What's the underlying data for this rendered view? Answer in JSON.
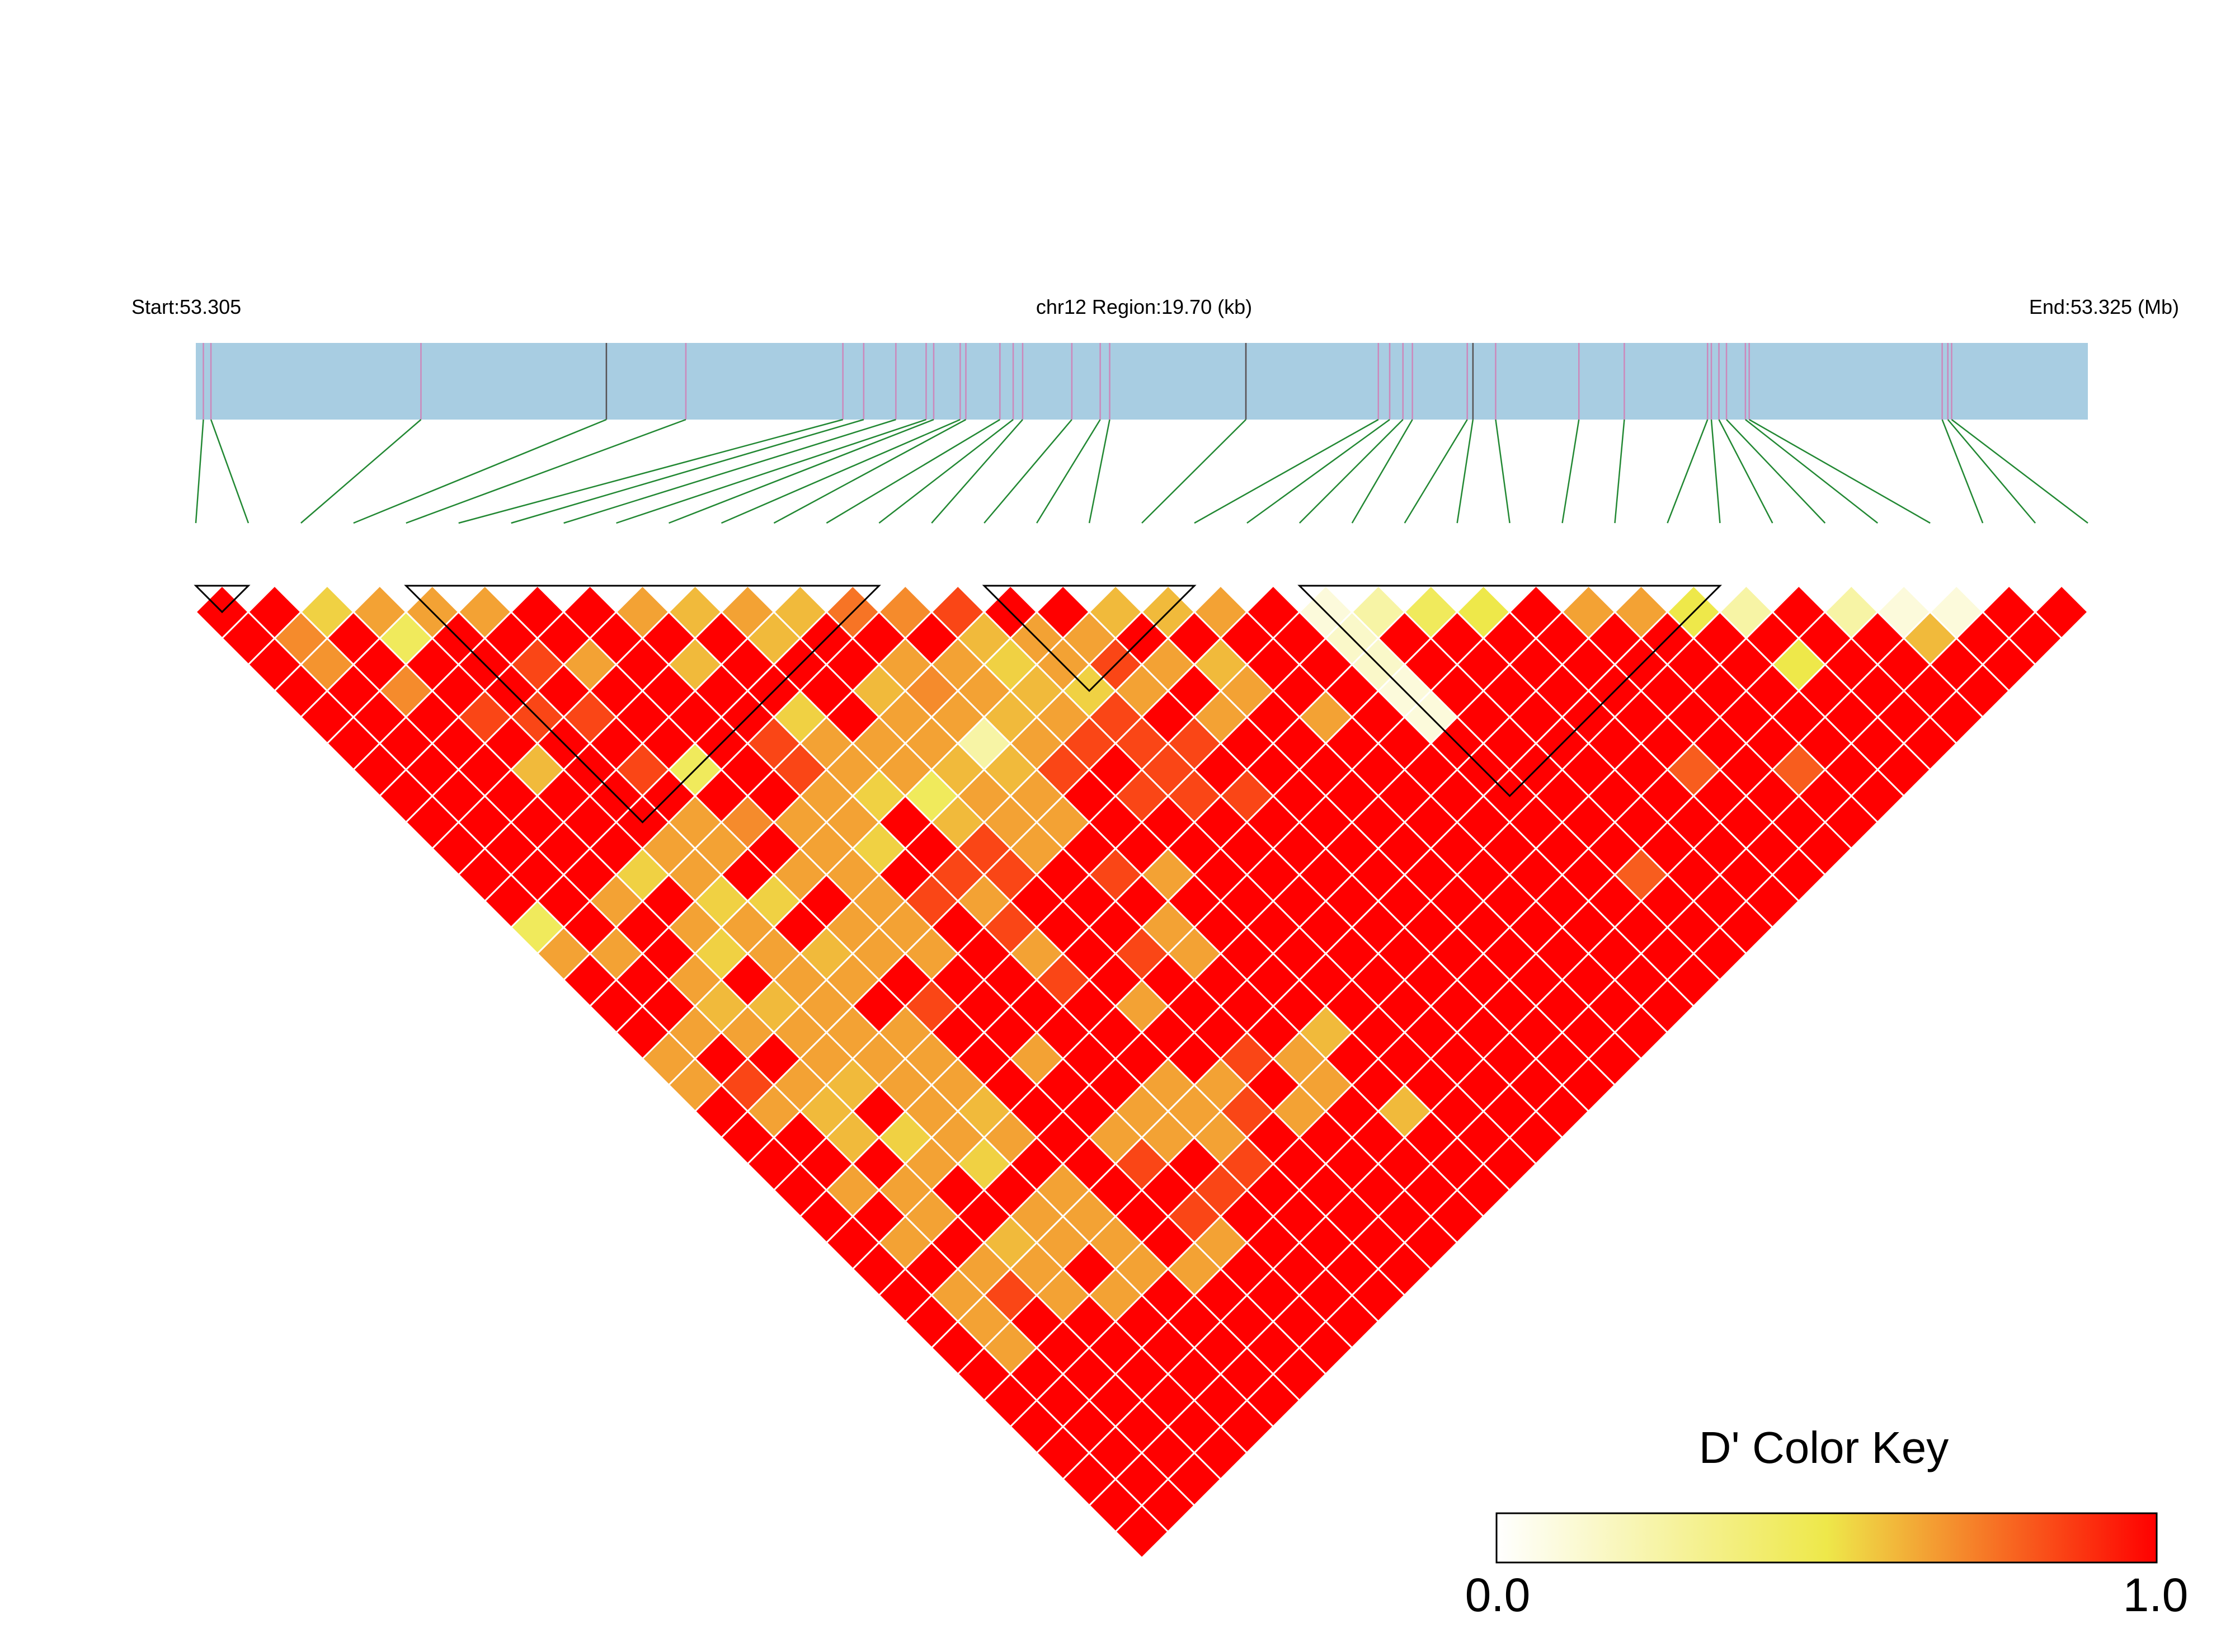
{
  "chart_data": {
    "type": "heatmap",
    "subtype": "ld-triangle",
    "region": {
      "start_label": "Start:53.305",
      "center_label": "chr12 Region:19.70 (kb)",
      "end_label": "End:53.325 (Mb)",
      "start_mb": 53.305,
      "end_mb": 53.325,
      "length_kb": 19.7
    },
    "snp_positions_fraction": [
      0.004,
      0.008,
      0.119,
      0.217,
      0.259,
      0.342,
      0.353,
      0.37,
      0.386,
      0.39,
      0.404,
      0.407,
      0.425,
      0.432,
      0.437,
      0.463,
      0.478,
      0.483,
      0.555,
      0.625,
      0.631,
      0.638,
      0.643,
      0.672,
      0.675,
      0.687,
      0.731,
      0.755,
      0.799,
      0.801,
      0.805,
      0.809,
      0.819,
      0.821,
      0.923,
      0.926,
      0.928
    ],
    "marker_line_colors": {
      "snp": "#cc88bb",
      "gene": "#555555",
      "connector": "#228833",
      "track": "#a8cde2"
    },
    "ld_matrix_dprime_rows": [
      [],
      [
        1
      ],
      [
        1,
        1
      ],
      [
        1,
        0.7,
        0.55
      ],
      [
        1,
        0.68,
        1,
        0.65
      ],
      [
        1,
        1,
        1,
        0.45,
        0.65
      ],
      [
        1,
        1,
        0.7,
        1,
        1,
        0.65
      ],
      [
        1,
        1,
        1,
        1,
        1,
        1,
        1
      ],
      [
        1,
        1,
        1,
        0.85,
        1,
        0.85,
        1,
        1
      ],
      [
        1,
        1,
        1,
        1,
        0.85,
        1,
        0.65,
        1,
        0.65
      ],
      [
        1,
        1,
        1,
        0.6,
        1,
        0.85,
        1,
        1,
        1,
        0.6
      ],
      [
        1,
        1,
        1,
        1,
        1,
        1,
        1,
        1,
        0.6,
        1,
        0.65
      ],
      [
        1,
        1,
        1,
        1,
        1,
        0.85,
        1,
        1,
        1,
        1,
        0.6,
        0.6
      ],
      [
        0.45,
        1,
        1,
        1,
        1,
        1,
        0.45,
        1,
        1,
        1,
        1,
        1,
        0.75
      ],
      [
        0.65,
        1,
        0.65,
        0.55,
        0.65,
        0.65,
        1,
        1,
        0.85,
        0.55,
        1,
        1,
        1,
        0.7
      ],
      [
        1,
        0.65,
        1,
        1,
        0.65,
        0.65,
        0.7,
        1,
        0.85,
        0.65,
        1,
        0.6,
        0.65,
        1,
        0.85
      ],
      [
        1,
        1,
        1,
        0.65,
        0.55,
        1,
        1,
        0.65,
        0.65,
        0.65,
        0.65,
        0.65,
        0.7,
        0.65,
        0.6,
        1
      ],
      [
        1,
        1,
        0.65,
        0.55,
        0.65,
        0.55,
        0.65,
        0.65,
        0.65,
        0.55,
        0.65,
        0.65,
        0.65,
        0.65,
        0.55,
        0.65,
        1
      ],
      [
        0.65,
        0.65,
        0.6,
        1,
        0.65,
        1,
        1,
        0.65,
        0.55,
        1,
        0.45,
        0.6,
        0.25,
        0.6,
        0.6,
        0.65,
        0.65,
        0.6
      ],
      [
        0.65,
        1,
        0.65,
        0.6,
        0.65,
        0.6,
        0.65,
        0.65,
        1,
        1,
        0.6,
        0.65,
        0.6,
        0.65,
        0.65,
        0.55,
        0.85,
        1,
        0.6
      ],
      [
        1,
        0.85,
        1,
        0.65,
        0.65,
        0.65,
        0.65,
        0.65,
        0.85,
        0.85,
        0.85,
        0.65,
        0.65,
        0.85,
        0.85,
        0.85,
        0.65,
        0.65,
        1,
        0.65
      ],
      [
        1,
        0.65,
        0.65,
        0.65,
        0.65,
        1,
        1,
        0.65,
        1,
        0.65,
        0.85,
        0.65,
        0.65,
        1,
        1,
        0.85,
        1,
        1,
        0.6,
        1,
        1
      ],
      [
        1,
        1,
        0.6,
        0.6,
        0.65,
        0.65,
        0.85,
        1,
        1,
        0.85,
        1,
        1,
        1,
        1,
        0.85,
        0.85,
        0.85,
        0.65,
        0.65,
        1,
        1,
        0.1
      ],
      [
        1,
        1,
        0.6,
        1,
        0.65,
        0.65,
        1,
        1,
        1,
        0.65,
        1,
        1,
        0.85,
        1,
        1,
        0.85,
        1,
        1,
        1,
        1,
        1,
        0.15,
        0.25
      ],
      [
        1,
        0.65,
        1,
        0.55,
        0.65,
        0.65,
        1,
        1,
        1,
        0.85,
        1,
        1,
        1,
        0.65,
        1,
        1,
        0.85,
        1,
        1,
        0.65,
        1,
        0.15,
        1,
        0.45
      ],
      [
        1,
        1,
        0.65,
        0.65,
        0.65,
        0.6,
        1,
        0.65,
        1,
        1,
        1,
        0.85,
        0.65,
        1,
        1,
        1,
        1,
        1,
        1,
        1,
        1,
        0.1,
        1,
        1,
        0.5
      ],
      [
        1,
        0.65,
        0.65,
        1,
        0.55,
        0.65,
        1,
        1,
        1,
        1,
        0.65,
        1,
        0.65,
        1,
        1,
        1,
        1,
        1,
        1,
        1,
        1,
        0.1,
        1,
        1,
        1,
        1
      ],
      [
        1,
        1,
        1,
        1,
        1,
        1,
        1,
        1,
        1,
        1,
        1,
        1,
        1,
        1,
        1,
        1,
        1,
        1,
        1,
        1,
        1,
        1,
        1,
        1,
        1,
        1,
        0.65
      ],
      [
        1,
        0.65,
        0.65,
        0.6,
        0.65,
        0.65,
        1,
        0.65,
        0.65,
        0.65,
        1,
        1,
        1,
        1,
        1,
        1,
        1,
        1,
        1,
        1,
        1,
        1,
        1,
        1,
        1,
        1,
        1,
        0.65
      ],
      [
        1,
        0.65,
        0.85,
        0.65,
        0.65,
        0.65,
        1,
        0.85,
        0.65,
        0.65,
        0.65,
        0.85,
        1,
        1,
        1,
        1,
        1,
        1,
        1,
        1,
        1,
        1,
        1,
        1,
        1,
        1,
        1,
        1,
        0.5
      ],
      [
        1,
        0.65,
        1,
        0.65,
        1,
        0.65,
        1,
        1,
        1,
        0.65,
        0.85,
        1,
        0.65,
        0.6,
        1,
        1,
        1,
        1,
        1,
        1,
        1,
        1,
        1,
        1,
        1,
        1,
        1,
        1,
        1,
        0.25
      ],
      [
        1,
        1,
        1,
        1,
        0.65,
        0.65,
        1,
        0.85,
        0.85,
        0.85,
        1,
        0.65,
        0.65,
        1,
        1,
        1,
        1,
        1,
        1,
        1,
        1,
        1,
        1,
        1,
        1,
        1,
        1,
        1,
        1,
        1,
        1
      ],
      [
        1,
        1,
        1,
        1,
        1,
        1,
        0.65,
        0.65,
        1,
        1,
        1,
        1,
        1,
        1,
        1,
        1,
        1,
        1,
        1,
        1,
        1,
        1,
        1,
        1,
        1,
        0.8,
        1,
        1,
        1,
        0.5,
        1,
        0.25
      ],
      [
        1,
        1,
        1,
        1,
        1,
        1,
        1,
        1,
        1,
        1,
        1,
        1,
        1,
        0.6,
        1,
        1,
        1,
        1,
        1,
        1,
        1,
        1,
        0.8,
        1,
        1,
        1,
        1,
        1,
        1,
        1,
        1,
        1,
        0.1
      ],
      [
        1,
        1,
        1,
        1,
        1,
        1,
        1,
        1,
        1,
        1,
        1,
        1,
        1,
        1,
        1,
        1,
        1,
        1,
        1,
        1,
        1,
        1,
        1,
        1,
        1,
        1,
        1,
        0.8,
        1,
        1,
        1,
        1,
        0.6,
        0.1
      ],
      [
        1,
        1,
        1,
        1,
        1,
        1,
        1,
        1,
        1,
        1,
        1,
        1,
        1,
        1,
        1,
        1,
        1,
        1,
        1,
        1,
        1,
        1,
        1,
        1,
        1,
        1,
        1,
        1,
        1,
        1,
        1,
        1,
        1,
        1,
        1
      ],
      [
        1,
        1,
        1,
        1,
        1,
        1,
        1,
        1,
        1,
        1,
        1,
        1,
        1,
        1,
        1,
        1,
        1,
        1,
        1,
        1,
        1,
        1,
        1,
        1,
        1,
        1,
        1,
        1,
        1,
        1,
        1,
        1,
        1,
        1,
        1,
        1
      ]
    ],
    "haplotype_blocks": [
      {
        "start_index": 0,
        "end_index": 1
      },
      {
        "start_index": 4,
        "end_index": 13
      },
      {
        "start_index": 15,
        "end_index": 19
      },
      {
        "start_index": 21,
        "end_index": 29
      }
    ],
    "color_key": {
      "title": "D' Color Key",
      "min_label": "0.0",
      "max_label": "1.0",
      "min": 0.0,
      "max": 1.0,
      "colors": [
        "#ffffff",
        "#eee84a",
        "#ff0000"
      ]
    }
  }
}
